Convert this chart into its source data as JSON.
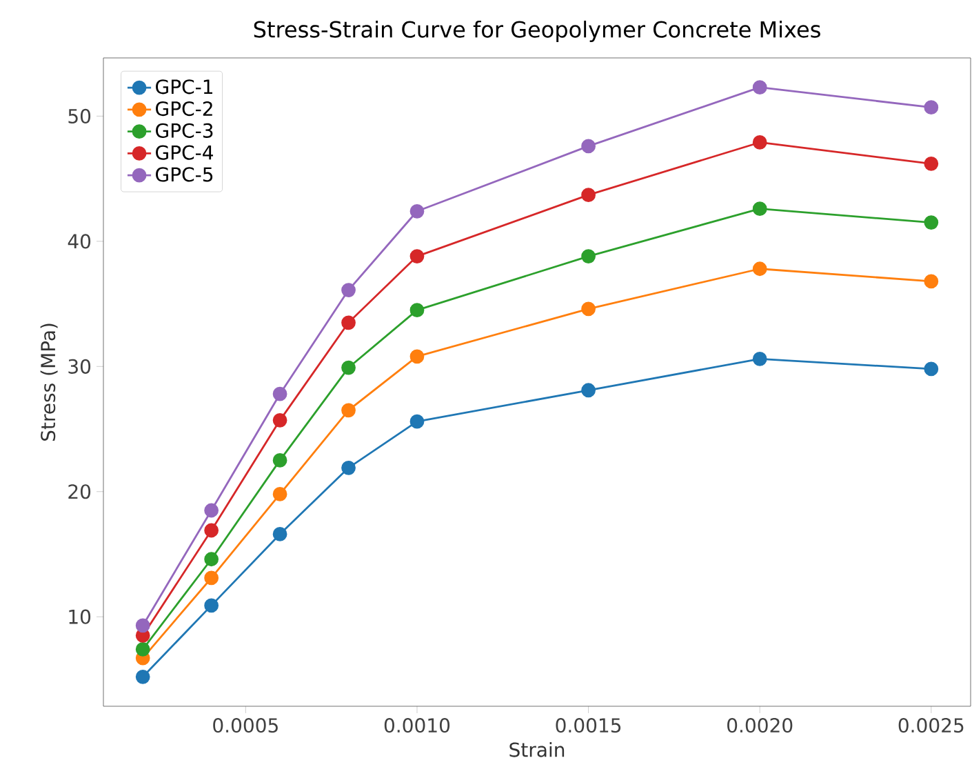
{
  "chart_data": {
    "type": "line",
    "title": "Stress-Strain Curve for Geopolymer Concrete Mixes",
    "xlabel": "Strain",
    "ylabel": "Stress (MPa)",
    "x": [
      0.0002,
      0.0004,
      0.0006,
      0.0008,
      0.001,
      0.0015,
      0.002,
      0.0025
    ],
    "series": [
      {
        "name": "GPC-1",
        "color": "#1f77b4",
        "values": [
          5.2,
          10.9,
          16.6,
          21.9,
          25.6,
          28.1,
          30.6,
          29.8
        ]
      },
      {
        "name": "GPC-2",
        "color": "#ff7f0e",
        "values": [
          6.7,
          13.1,
          19.8,
          26.5,
          30.8,
          34.6,
          37.8,
          36.8
        ]
      },
      {
        "name": "GPC-3",
        "color": "#2ca02c",
        "values": [
          7.4,
          14.6,
          22.5,
          29.9,
          34.5,
          38.8,
          42.6,
          41.5
        ]
      },
      {
        "name": "GPC-4",
        "color": "#d62728",
        "values": [
          8.5,
          16.9,
          25.7,
          33.5,
          38.8,
          43.7,
          47.9,
          46.2
        ]
      },
      {
        "name": "GPC-5",
        "color": "#9467bd",
        "values": [
          9.3,
          18.5,
          27.8,
          36.1,
          42.4,
          47.6,
          52.3,
          50.7
        ]
      }
    ],
    "xlim": [
      8.5e-05,
      0.002615
    ],
    "ylim": [
      2.85,
      54.65
    ],
    "xticks": [
      {
        "value": 0.0005,
        "label": "0.0005"
      },
      {
        "value": 0.001,
        "label": "0.0010"
      },
      {
        "value": 0.0015,
        "label": "0.0015"
      },
      {
        "value": 0.002,
        "label": "0.0020"
      },
      {
        "value": 0.0025,
        "label": "0.0025"
      }
    ],
    "yticks": [
      10,
      20,
      30,
      40,
      50
    ],
    "legend": "top left",
    "marker": "circle",
    "line_style": "solid",
    "grid": false
  }
}
